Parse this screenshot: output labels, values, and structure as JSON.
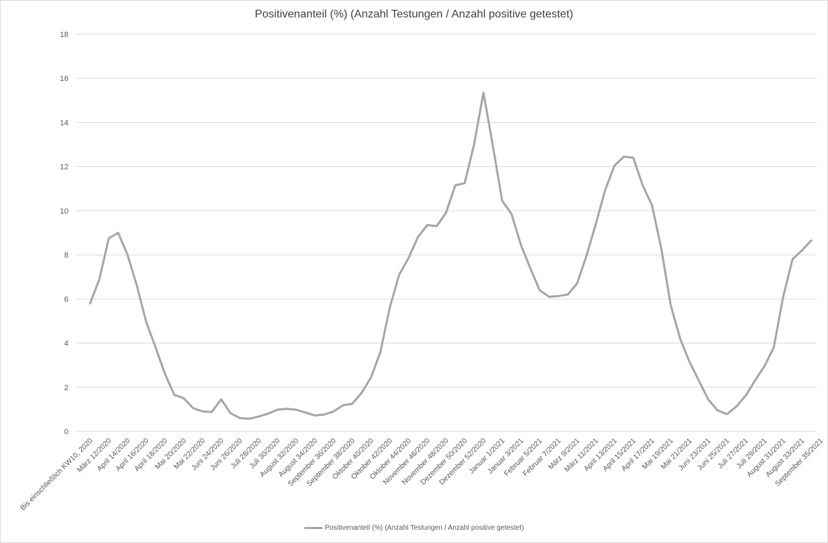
{
  "chart_data": {
    "type": "line",
    "title": "Positivenanteil (%) (Anzahl Testungen / Anzahl positive getestet)",
    "xlabel": "",
    "ylabel": "",
    "ylim": [
      0,
      18
    ],
    "yticks": [
      0,
      2,
      4,
      6,
      8,
      10,
      12,
      14,
      16,
      18
    ],
    "grid": true,
    "legend_position": "bottom",
    "line_color": "#a5a5a5",
    "tick_labels": [
      {
        "i": 0,
        "label": "Bis einschließlich KW10, 2020"
      },
      {
        "i": 2,
        "label": "März 12/2020"
      },
      {
        "i": 4,
        "label": "April 14/2020"
      },
      {
        "i": 6,
        "label": "April 16/2020"
      },
      {
        "i": 8,
        "label": "April 18/2020"
      },
      {
        "i": 10,
        "label": "Mai 20/2020"
      },
      {
        "i": 12,
        "label": "Mai 22/2020"
      },
      {
        "i": 14,
        "label": "Juni 24/2020"
      },
      {
        "i": 16,
        "label": "Juni 26/2020"
      },
      {
        "i": 18,
        "label": "Juli 28/2020"
      },
      {
        "i": 20,
        "label": "Juli 30/2020"
      },
      {
        "i": 22,
        "label": "August 32/2020"
      },
      {
        "i": 24,
        "label": "August 34/2020"
      },
      {
        "i": 26,
        "label": "September 36/2020"
      },
      {
        "i": 28,
        "label": "September 38/2020"
      },
      {
        "i": 30,
        "label": "Oktober 40/2020"
      },
      {
        "i": 32,
        "label": "Oktober 42/2020"
      },
      {
        "i": 34,
        "label": "Oktober 44/2020"
      },
      {
        "i": 36,
        "label": "November 46/2020"
      },
      {
        "i": 38,
        "label": "November 48/2020"
      },
      {
        "i": 40,
        "label": "Dezember 50/2020"
      },
      {
        "i": 42,
        "label": "Dezember 52/2020"
      },
      {
        "i": 44,
        "label": "Januar 1/2021"
      },
      {
        "i": 46,
        "label": "Januar 3/2021"
      },
      {
        "i": 48,
        "label": "Februar 5/2021"
      },
      {
        "i": 50,
        "label": "Februar 7/2021"
      },
      {
        "i": 52,
        "label": "März 9/2021"
      },
      {
        "i": 54,
        "label": "März 11/2021"
      },
      {
        "i": 56,
        "label": "April 13/2021"
      },
      {
        "i": 58,
        "label": "April 15/2021"
      },
      {
        "i": 60,
        "label": "April 17/2021"
      },
      {
        "i": 62,
        "label": "Mai 19/2021"
      },
      {
        "i": 64,
        "label": "Mai 21/2021"
      },
      {
        "i": 66,
        "label": "Juni 23/2021"
      },
      {
        "i": 68,
        "label": "Juni 25/2021"
      },
      {
        "i": 70,
        "label": "Juli 27/2021"
      },
      {
        "i": 72,
        "label": "Juli 29/2021"
      },
      {
        "i": 74,
        "label": "August 31/2021"
      },
      {
        "i": 76,
        "label": "August 33/2021"
      },
      {
        "i": 78,
        "label": "September 35/2021"
      }
    ],
    "series": [
      {
        "name": "Positivenanteil (%) (Anzahl Testungen / Anzahl positive getestet)",
        "values": [
          5.8,
          6.9,
          8.75,
          9.0,
          8.0,
          6.6,
          4.95,
          3.8,
          2.6,
          1.65,
          1.5,
          1.05,
          0.9,
          0.88,
          1.45,
          0.82,
          0.6,
          0.57,
          0.67,
          0.8,
          0.98,
          1.02,
          0.98,
          0.85,
          0.72,
          0.76,
          0.9,
          1.18,
          1.25,
          1.75,
          2.45,
          3.6,
          5.6,
          7.1,
          7.85,
          8.8,
          9.35,
          9.3,
          9.9,
          11.15,
          11.25,
          13.0,
          15.35,
          12.95,
          10.45,
          9.85,
          8.45,
          7.4,
          6.4,
          6.1,
          6.13,
          6.2,
          6.7,
          7.95,
          9.4,
          10.95,
          12.05,
          12.45,
          12.4,
          11.15,
          10.25,
          8.25,
          5.7,
          4.2,
          3.15,
          2.3,
          1.45,
          0.95,
          0.78,
          1.12,
          1.62,
          2.3,
          2.95,
          3.8,
          6.1,
          7.8,
          8.2,
          8.65
        ]
      }
    ]
  }
}
